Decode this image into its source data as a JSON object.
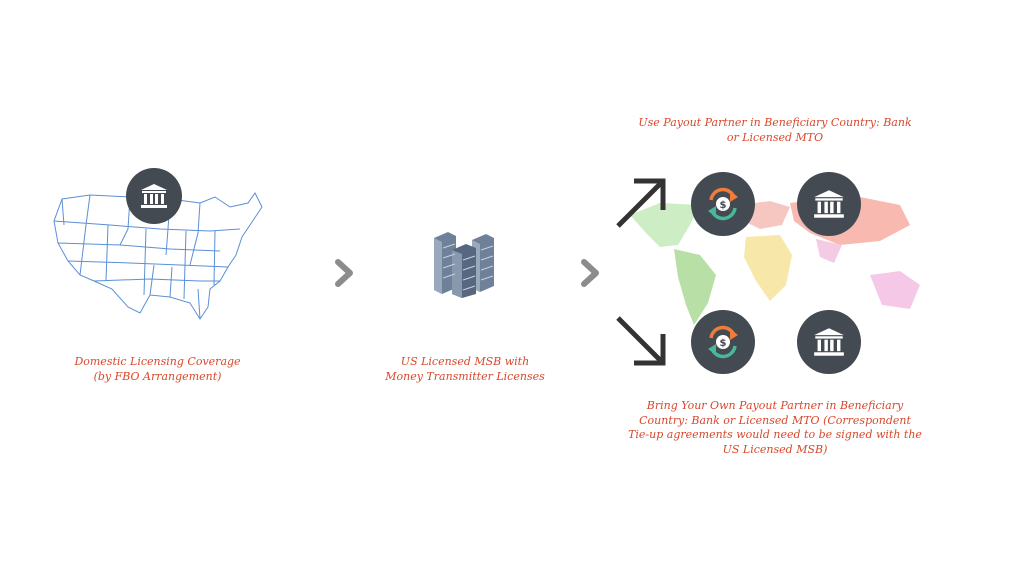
{
  "left": {
    "caption": "Domestic Licensing Coverage\n(by FBO Arrangement)",
    "icon": "bank-icon",
    "map": "us-map"
  },
  "middle": {
    "caption": "US Licensed MSB with\nMoney Transmitter Licenses",
    "icon": "office-buildings-icon"
  },
  "right": {
    "top_caption": "Use Payout Partner in Beneficiary Country: Bank\nor Licensed MTO",
    "bottom_caption": "Bring Your Own Payout Partner in Beneficiary\nCountry: Bank or Licensed MTO (Correspondent\nTie-up agreements would need to be signed with the\nUS Licensed MSB)",
    "icons": [
      "dollar-exchange-icon",
      "bank-icon"
    ],
    "map": "world-map"
  },
  "colors": {
    "caption": "#d9482b",
    "circle": "#444a52",
    "chevron": "#8c8c8c",
    "exchange_orange": "#f07c3a",
    "exchange_teal": "#49b79a"
  }
}
